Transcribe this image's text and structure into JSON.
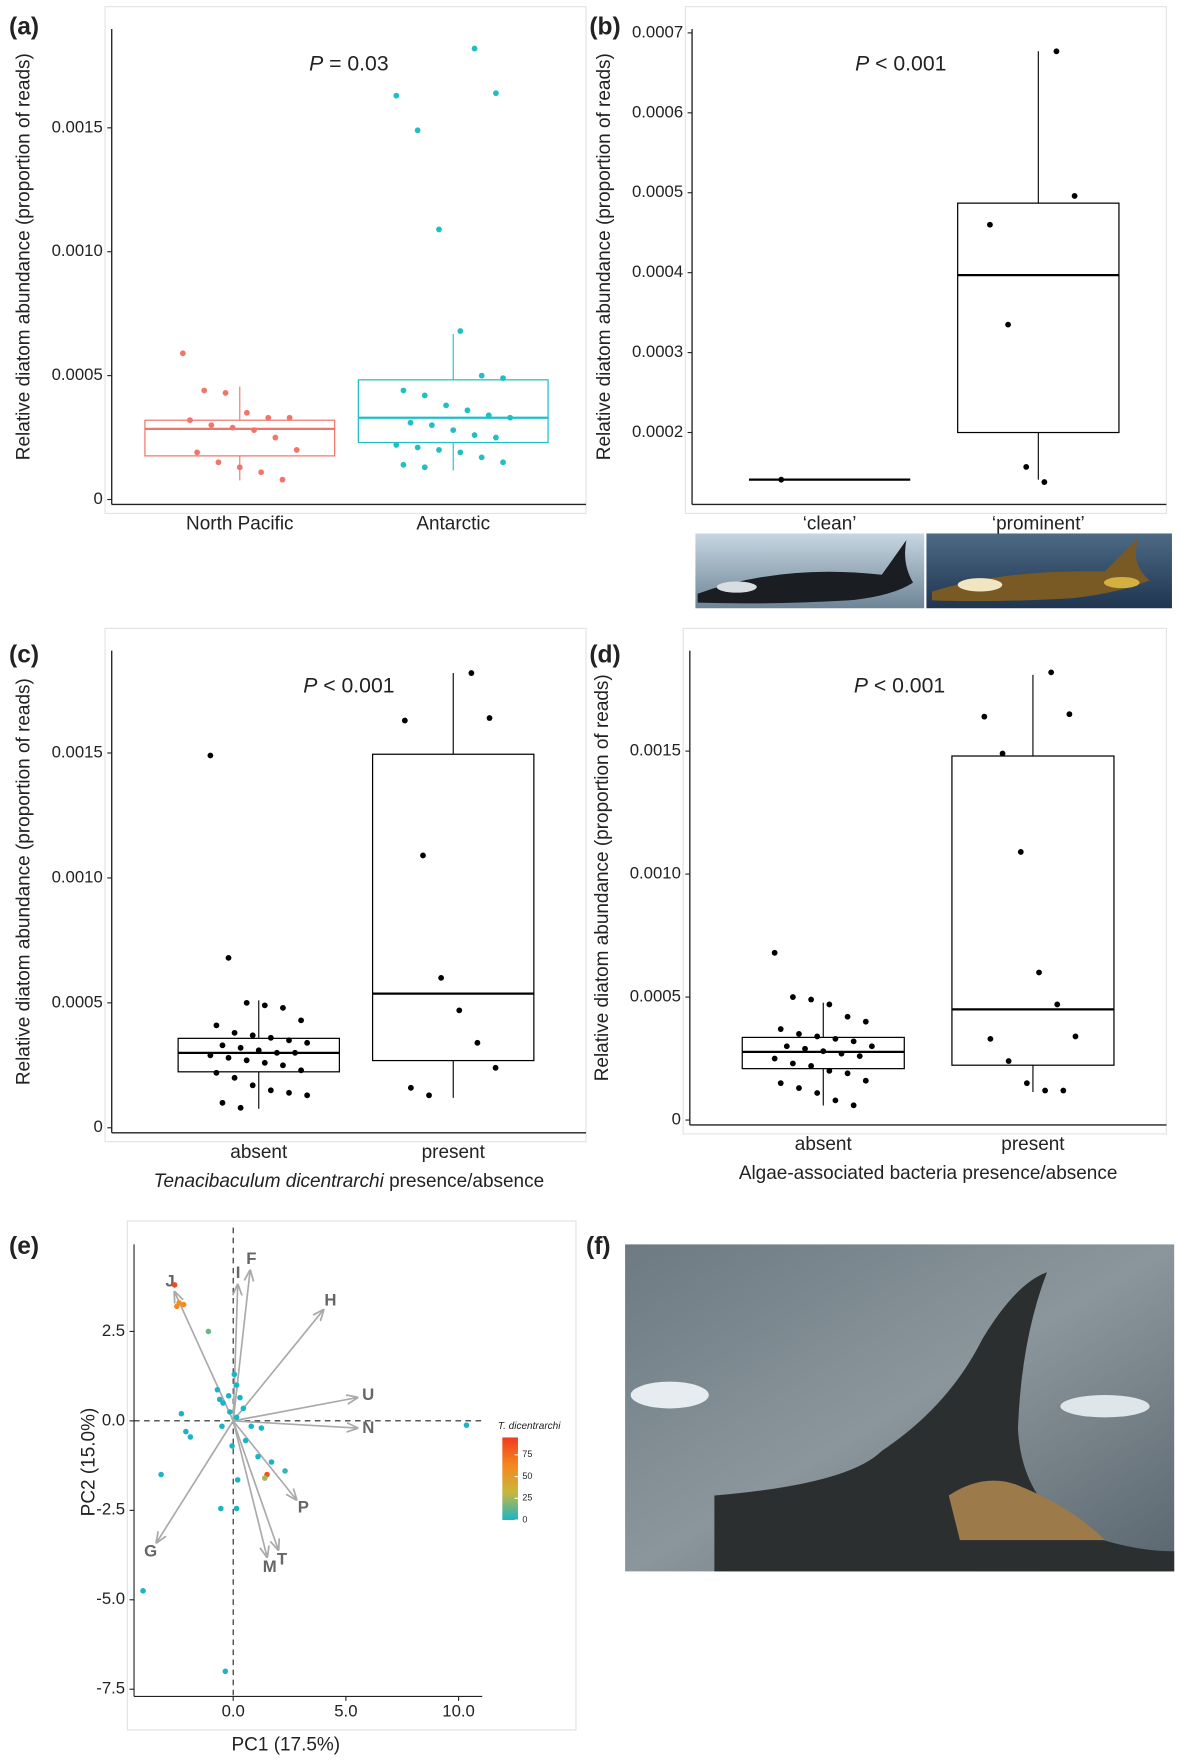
{
  "chart_data": [
    {
      "type": "box",
      "panel": "(a)",
      "p_symbol": "P",
      "p_text": " = 0.03",
      "y_label": "Relative diatom abundance (proportion of reads)",
      "categories": [
        "North Pacific",
        "Antarctic"
      ],
      "colors": [
        "#f0766c",
        "#1fbfc4"
      ],
      "ylim": [
        -2e-05,
        0.00198
      ],
      "yticks": [
        0,
        0.0005,
        {
          "value": 0.001,
          "label": "0.0010"
        },
        0.0015
      ],
      "boxes": [
        {
          "q1": 0.000176,
          "median": 0.000285,
          "q3": 0.00032,
          "whisker_low": 7.7e-05,
          "whisker_high": 0.000456
        },
        {
          "q1": 0.00023,
          "median": 0.00033,
          "q3": 0.000483,
          "whisker_low": 0.000117,
          "whisker_high": 0.000668
        }
      ],
      "points": [
        [
          0.00059,
          0.00044,
          0.00043,
          0.00035,
          0.00033,
          0.00033,
          0.00032,
          0.0003,
          0.00029,
          0.00028,
          0.00025,
          0.0002,
          0.00019,
          0.00015,
          0.00013,
          0.00011,
          8e-05
        ],
        [
          0.00182,
          0.00164,
          0.00163,
          0.00149,
          0.00109,
          0.00068,
          0.0005,
          0.00049,
          0.00044,
          0.00042,
          0.00038,
          0.00036,
          0.00034,
          0.00033,
          0.00031,
          0.0003,
          0.00028,
          0.00026,
          0.00025,
          0.00022,
          0.00021,
          0.0002,
          0.00019,
          0.00017,
          0.00015,
          0.00014,
          0.00013
        ]
      ]
    },
    {
      "type": "box",
      "panel": "(b)",
      "p_symbol": "P",
      "p_text": " < 0.001",
      "y_label": "Relative diatom abundance (proportion of reads)",
      "categories": [
        "‘clean’",
        "‘prominent’"
      ],
      "colors": [
        "#000000",
        "#000000"
      ],
      "ylim": [
        0.00011,
        0.00073
      ],
      "yticks": [
        0.0002,
        0.0003,
        0.0004,
        0.0005,
        0.0006,
        0.0007
      ],
      "boxes": [
        {
          "q1": 0.000141,
          "median": 0.000141,
          "q3": 0.000141,
          "whisker_low": 0.000141,
          "whisker_high": 0.000141
        },
        {
          "q1": 0.0002,
          "median": 0.000397,
          "q3": 0.000487,
          "whisker_low": 0.000141,
          "whisker_high": 0.000677
        }
      ],
      "points": [
        [
          0.000141
        ],
        [
          0.000677,
          0.000496,
          0.00046,
          0.000335,
          0.000157,
          0.000138
        ]
      ]
    },
    {
      "type": "box",
      "panel": "(c)",
      "p_symbol": "P",
      "p_text": " < 0.001",
      "y_label": "Relative diatom abundance (proportion of reads)",
      "x_label_italic": "Tenacibaculum dicentrarchi",
      "x_label": " presence/absence",
      "categories": [
        "absent",
        "present"
      ],
      "colors": [
        "#000000",
        "#000000"
      ],
      "ylim": [
        -2e-05,
        0.00199
      ],
      "yticks": [
        0,
        0.0005,
        {
          "value": 0.001,
          "label": "0.0010"
        },
        0.0015
      ],
      "boxes": [
        {
          "q1": 0.000224,
          "median": 0.0003,
          "q3": 0.000358,
          "whisker_low": 7.6e-05,
          "whisker_high": 0.00051
        },
        {
          "q1": 0.000269,
          "median": 0.000537,
          "q3": 0.001495,
          "whisker_low": 0.00012,
          "whisker_high": 0.00182
        }
      ],
      "points": [
        [
          0.00149,
          0.00068,
          0.0005,
          0.00049,
          0.00048,
          0.00043,
          0.00041,
          0.00038,
          0.00037,
          0.00036,
          0.00035,
          0.00034,
          0.00033,
          0.00032,
          0.00031,
          0.0003,
          0.0003,
          0.00029,
          0.00028,
          0.00027,
          0.00026,
          0.00025,
          0.00023,
          0.00022,
          0.0002,
          0.00017,
          0.00015,
          0.00014,
          0.00013,
          0.0001,
          8e-05
        ],
        [
          0.00182,
          0.00164,
          0.00163,
          0.00109,
          0.0006,
          0.00047,
          0.00034,
          0.00024,
          0.00016,
          0.00013
        ]
      ]
    },
    {
      "type": "box",
      "panel": "(d)",
      "p_symbol": "P",
      "p_text": " < 0.001",
      "y_label": "Relative diatom abundance (proportion of reads)",
      "x_label": "Algae-associated bacteria presence/absence",
      "categories": [
        "absent",
        "present"
      ],
      "colors": [
        "#000000",
        "#000000"
      ],
      "ylim": [
        -2e-05,
        0.00199
      ],
      "yticks": [
        0,
        0.0005,
        {
          "value": 0.001,
          "label": "0.0010"
        },
        0.0015
      ],
      "boxes": [
        {
          "q1": 0.000209,
          "median": 0.000277,
          "q3": 0.000336,
          "whisker_low": 5.9e-05,
          "whisker_high": 0.000477
        },
        {
          "q1": 0.000223,
          "median": 0.00045,
          "q3": 0.00148,
          "whisker_low": 0.000114,
          "whisker_high": 0.00181
        }
      ],
      "points": [
        [
          0.00068,
          0.0005,
          0.00049,
          0.00047,
          0.00042,
          0.0004,
          0.00037,
          0.00035,
          0.00034,
          0.00033,
          0.00032,
          0.0003,
          0.0003,
          0.00029,
          0.00028,
          0.00027,
          0.00026,
          0.00025,
          0.00023,
          0.00022,
          0.0002,
          0.00019,
          0.00016,
          0.00015,
          0.00013,
          0.00011,
          8e-05,
          6e-05
        ],
        [
          0.00182,
          0.00165,
          0.00164,
          0.00149,
          0.00109,
          0.0006,
          0.00047,
          0.00034,
          0.00033,
          0.00024,
          0.00015,
          0.00012,
          0.00012
        ]
      ]
    },
    {
      "type": "biplot",
      "panel": "(e)",
      "x_label": "PC1 (17.5%)",
      "y_label": "PC2 (15.0%)",
      "xlim": [
        -4.4,
        11.05
      ],
      "ylim": [
        -7.7,
        5.4
      ],
      "xticks": [
        {
          "value": 0,
          "label": "0.0"
        },
        {
          "value": 5,
          "label": "5.0"
        },
        {
          "value": 10,
          "label": "10.0"
        }
      ],
      "yticks": [
        {
          "value": -7.5,
          "label": "-7.5"
        },
        {
          "value": -5,
          "label": "-5.0"
        },
        {
          "value": -2.5,
          "label": "-2.5"
        },
        {
          "value": 0,
          "label": "0.0"
        },
        {
          "value": 2.5,
          "label": "2.5"
        }
      ],
      "color_title": "T. dicentrarchi",
      "clim": [
        0,
        95
      ],
      "cticks": [
        0,
        25,
        50,
        75
      ],
      "colormap": [
        "#19b5c6",
        "#c9b73c",
        "#f5861f",
        "#f03c1e"
      ],
      "x": [
        -2.6,
        -2.4,
        -2.2,
        -2.5,
        -1.1,
        0.05,
        0.15,
        -0.2,
        -0.6,
        -0.45,
        0.3,
        0.45,
        -0.15,
        0.15,
        0.8,
        1.25,
        -2.3,
        -2.1,
        -1.9,
        -3.2,
        1.1,
        1.7,
        2.3,
        1.5,
        1.4,
        0.2,
        -0.55,
        0.15,
        -4.0,
        -0.35,
        10.35,
        -0.5,
        0.55,
        -0.05,
        -0.7
      ],
      "y": [
        3.8,
        3.3,
        3.25,
        3.2,
        2.5,
        1.3,
        1.0,
        0.7,
        0.6,
        0.5,
        0.65,
        0.35,
        0.25,
        0.1,
        -0.15,
        -0.2,
        0.2,
        -0.3,
        -0.45,
        -1.5,
        -1.0,
        -1.15,
        -1.4,
        -1.5,
        -1.6,
        -1.65,
        -2.45,
        -2.45,
        -4.75,
        -7.0,
        -0.12,
        -0.15,
        -0.55,
        -0.7,
        0.87
      ],
      "color_values": [
        90,
        55,
        60,
        60,
        15,
        0,
        0,
        0,
        0,
        0,
        0,
        0,
        0,
        0,
        0,
        0,
        0,
        0,
        0,
        0,
        0,
        0,
        5,
        85,
        25,
        0,
        0,
        0,
        0,
        0,
        0,
        0,
        0,
        0,
        0
      ],
      "loadings": {
        "labels": [
          "J",
          "F",
          "I",
          "H",
          "U",
          "N",
          "P",
          "T",
          "M",
          "G"
        ],
        "x": [
          -2.6,
          0.75,
          0.2,
          4.0,
          5.5,
          5.5,
          2.8,
          2.0,
          1.5,
          -3.4
        ],
        "y": [
          3.6,
          4.2,
          3.8,
          3.1,
          0.65,
          -0.2,
          -2.2,
          -3.6,
          -3.8,
          -3.4
        ]
      }
    }
  ],
  "image_panel": {
    "panel": "(f)"
  }
}
